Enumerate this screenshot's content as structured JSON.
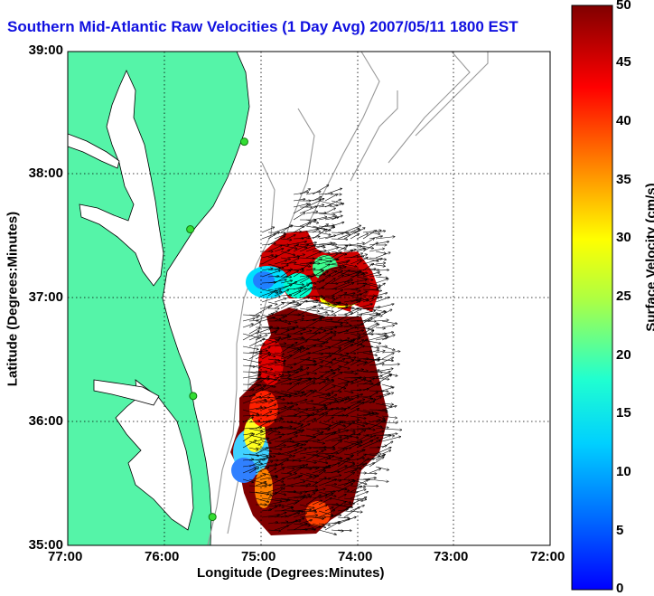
{
  "title": "Southern Mid-Atlantic Raw Velocities (1 Day Avg) 2007/05/11 1800 EST",
  "axes": {
    "xlabel": "Longitude (Degrees:Minutes)",
    "ylabel": "Latitude (Degrees:Minutes)",
    "xticks": [
      "77:00",
      "76:00",
      "75:00",
      "74:00",
      "73:00",
      "72:00"
    ],
    "yticks": [
      "39:00",
      "38:00",
      "37:00",
      "36:00",
      "35:00"
    ],
    "xlim": [
      -77,
      -72
    ],
    "ylim": [
      35,
      39
    ],
    "grid": "dotted"
  },
  "colorbar": {
    "label": "Surface Velocity (cm/s)",
    "ticks": [
      "50",
      "45",
      "40",
      "35",
      "30",
      "25",
      "20",
      "15",
      "10",
      "5",
      "0"
    ],
    "range": [
      0,
      50
    ],
    "colormap": "jet"
  },
  "colors": {
    "land": "#55f4a8",
    "coast": "#000000",
    "bathymetry": "#999999",
    "title": "#1010e0",
    "sites": "#33dd33"
  },
  "radar_sites": [
    {
      "lon": -75.17,
      "lat": 38.27
    },
    {
      "lon": -75.73,
      "lat": 37.56
    },
    {
      "lon": -75.7,
      "lat": 36.21
    },
    {
      "lon": -75.5,
      "lat": 35.23
    }
  ]
}
